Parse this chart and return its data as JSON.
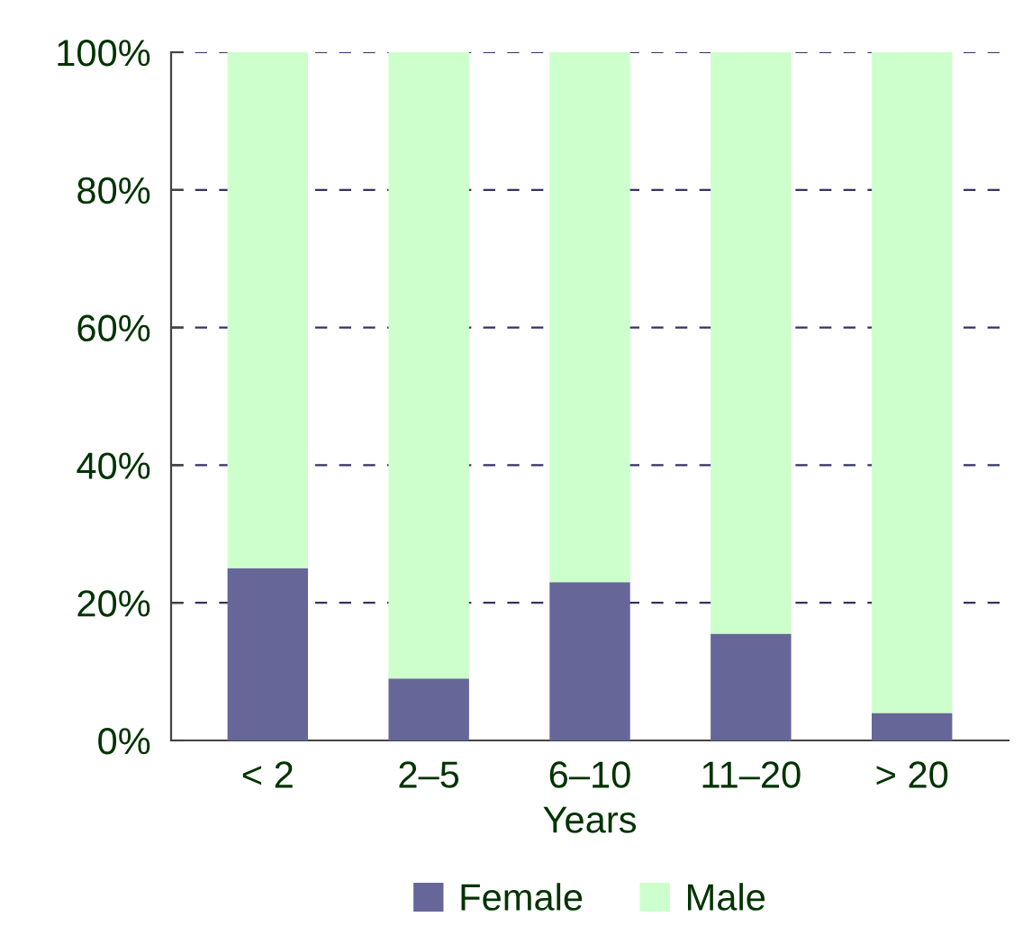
{
  "chart_data": {
    "type": "bar",
    "stacked": true,
    "xlabel": "Years",
    "categories": [
      "< 2",
      "2–5",
      "6–10",
      "11–20",
      "> 20"
    ],
    "series": [
      {
        "name": "Female",
        "color": "#666699",
        "values": [
          25,
          9,
          23,
          15.5,
          4
        ]
      },
      {
        "name": "Male",
        "color": "#ccffcc",
        "values": [
          75,
          91,
          77,
          84.5,
          96
        ]
      }
    ],
    "ylim": [
      0,
      100
    ],
    "yticks": [
      {
        "value": 0,
        "label": "0%"
      },
      {
        "value": 20,
        "label": "20%"
      },
      {
        "value": 40,
        "label": "40%"
      },
      {
        "value": 60,
        "label": "60%"
      },
      {
        "value": 80,
        "label": "80%"
      },
      {
        "value": 100,
        "label": "100%"
      }
    ],
    "grid": "y",
    "legend": "bottom"
  }
}
